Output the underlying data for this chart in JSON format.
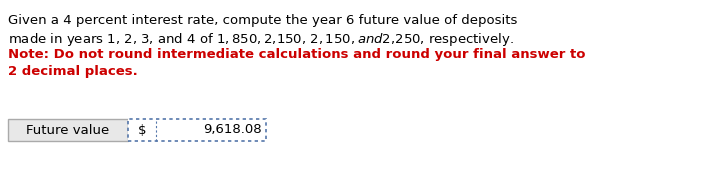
{
  "bg_color": "#ffffff",
  "line1": "Given a 4 percent interest rate, compute the year 6 future value of deposits",
  "line2": "made in years 1, 2, 3, and 4 of $1,850, $2,150, $2,150, and $2,250, respectively.",
  "line3": "Note: Do not round intermediate calculations and round your final answer to",
  "line4": "2 decimal places.",
  "note_color": "#cc0000",
  "normal_color": "#000000",
  "text_fontsize": 9.5,
  "note_fontsize": 9.5,
  "label_text": "Future value",
  "dollar_text": "$",
  "value_text": "9,618.08",
  "table_fontsize": 9.5,
  "label_box_facecolor": "#e8e8e8",
  "label_box_edgecolor": "#aaaaaa",
  "dotted_box_edgecolor": "#5577aa",
  "dotted_box_facecolor": "#ffffff"
}
